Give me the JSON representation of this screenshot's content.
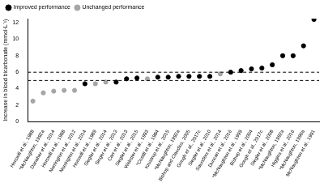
{
  "chart_data": {
    "type": "scatter",
    "y_label": "Increase in blood bicarbonate (mmol·L⁻¹)",
    "categories": [
      "Horswill et al., 1988",
      "*McNaughton, 1992a",
      "Danaher et al., 2014",
      "Horswill et al., 1988",
      "Norrington et al., 2012",
      "Norrington et al., 2014",
      "Horswill et al., 1989",
      "Siegler et al., 2014",
      "Singer et al., 2013",
      "Carr et al., 2013",
      "Siegler et al., 2015",
      "Webster et al., 1993",
      "*Costill et al., 1984",
      "Krustrup et al., 2015",
      "*McNaughton, 1992a",
      "Bishop and Claudius, 2005",
      "Gough et al., 2017c",
      "Siegler et al., 2010",
      "Saunders et al., 2014",
      "Duncan et al., 2016",
      "*McNaughton et al., 1999",
      "Bishop et al., 2004",
      "Gough et al., 2017c",
      "Siegler et al., 2008",
      "*McNaughton, 1992a",
      "Higgins et al., 2016",
      "*McNaughton, 1990a",
      "McNaughton et al., 1991"
    ],
    "series": [
      {
        "name": "Improved performance",
        "color": "#000000",
        "marker": "circle",
        "values": [
          null,
          null,
          null,
          null,
          null,
          4.6,
          null,
          null,
          4.8,
          5.2,
          5.3,
          null,
          5.4,
          5.4,
          5.5,
          5.5,
          5.5,
          5.5,
          null,
          6.0,
          6.2,
          6.4,
          6.5,
          6.9,
          8.0,
          8.0,
          9.2,
          12.4
        ]
      },
      {
        "name": "Unchanged performance",
        "color": "#a6a6a6",
        "marker": "circle",
        "values": [
          2.5,
          3.5,
          3.7,
          3.8,
          3.8,
          null,
          4.6,
          4.8,
          null,
          null,
          null,
          5.2,
          null,
          null,
          null,
          null,
          null,
          null,
          5.8,
          null,
          null,
          null,
          null,
          null,
          null,
          null,
          null,
          null
        ]
      }
    ],
    "reference_lines": [
      5,
      6
    ],
    "ylim": [
      0,
      12.5
    ],
    "yticks": [
      0,
      2,
      4,
      6,
      8,
      10,
      12
    ],
    "grid": false,
    "legend": "top-left"
  }
}
